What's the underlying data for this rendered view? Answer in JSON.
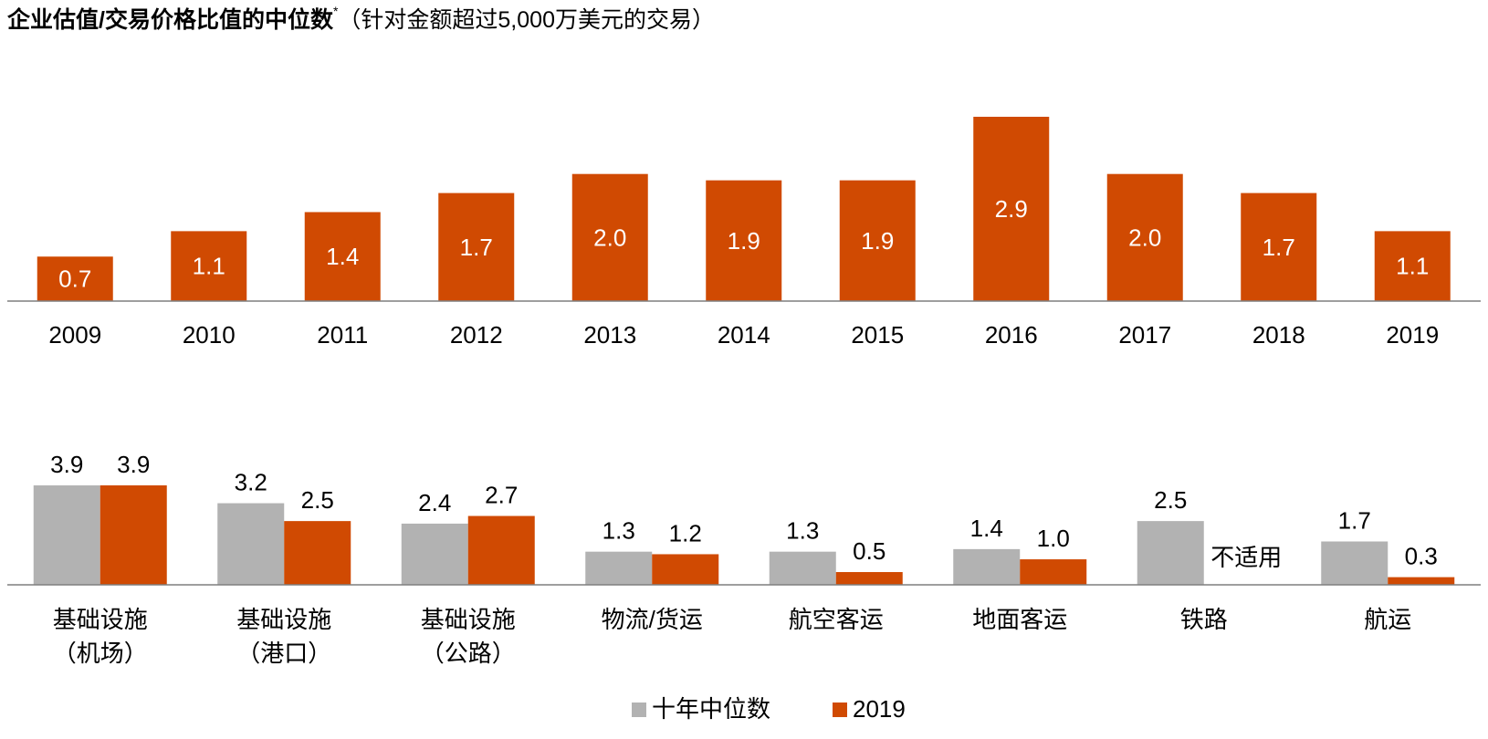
{
  "title": {
    "main": "企业估值/交易价格比值的中位数",
    "star": "*",
    "sub": "（针对金额超过5,000万美元的交易）"
  },
  "colors": {
    "orange": "#D04A02",
    "gray": "#B2B2B2",
    "axis": "#7F7F7F"
  },
  "chart_data": [
    {
      "type": "bar",
      "categories": [
        "2009",
        "2010",
        "2011",
        "2012",
        "2013",
        "2014",
        "2015",
        "2016",
        "2017",
        "2018",
        "2019"
      ],
      "values": [
        0.7,
        1.1,
        1.4,
        1.7,
        2.0,
        1.9,
        1.9,
        2.9,
        2.0,
        1.7,
        1.1
      ],
      "labels": [
        "0.7",
        "1.1",
        "1.4",
        "1.7",
        "2.0",
        "1.9",
        "1.9",
        "2.9",
        "2.0",
        "1.7",
        "1.1"
      ],
      "ylim": [
        0,
        2.9
      ]
    },
    {
      "type": "bar",
      "categories": [
        [
          "基础设施",
          "（机场）"
        ],
        [
          "基础设施",
          "（港口）"
        ],
        [
          "基础设施",
          "（公路）"
        ],
        [
          "物流/货运"
        ],
        [
          "航空客运"
        ],
        [
          "地面客运"
        ],
        [
          "铁路"
        ],
        [
          "航运"
        ]
      ],
      "series": [
        {
          "name": "十年中位数",
          "values": [
            3.9,
            3.2,
            2.4,
            1.3,
            1.3,
            1.4,
            2.5,
            1.7
          ],
          "labels": [
            "3.9",
            "3.2",
            "2.4",
            "1.3",
            "1.3",
            "1.4",
            "2.5",
            "1.7"
          ]
        },
        {
          "name": "2019",
          "values": [
            3.9,
            2.5,
            2.7,
            1.2,
            0.5,
            1.0,
            null,
            0.3
          ],
          "labels": [
            "3.9",
            "2.5",
            "2.7",
            "1.2",
            "0.5",
            "1.0",
            "不适用",
            "0.3"
          ]
        }
      ],
      "ylim": [
        0,
        3.9
      ],
      "legend": "bottom-center"
    }
  ]
}
